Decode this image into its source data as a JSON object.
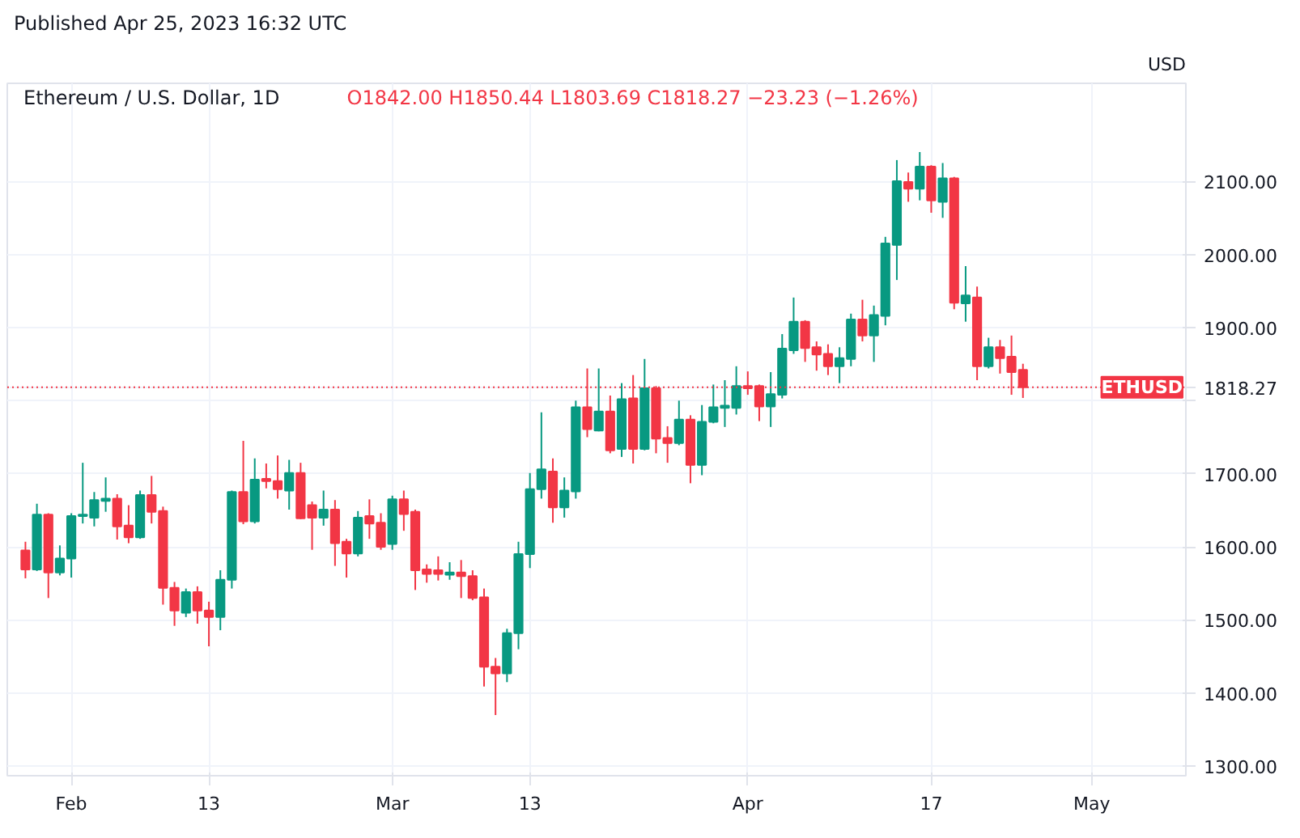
{
  "chart_data": {
    "type": "candlestick",
    "title": "Ethereum / U.S. Dollar, 1D",
    "subtitle": "O1842.00 H1850.44 L1803.69 C1818.27 −23.23 (−1.26%)",
    "ylabel": "USD",
    "annotations": [
      "Published Apr 25, 2023 16:32 UTC"
    ],
    "x": [
      "2023-01-28",
      "2023-01-29",
      "2023-01-30",
      "2023-01-31",
      "2023-02-01",
      "2023-02-02",
      "2023-02-03",
      "2023-02-04",
      "2023-02-05",
      "2023-02-06",
      "2023-02-07",
      "2023-02-08",
      "2023-02-09",
      "2023-02-10",
      "2023-02-11",
      "2023-02-12",
      "2023-02-13",
      "2023-02-14",
      "2023-02-15",
      "2023-02-16",
      "2023-02-17",
      "2023-02-18",
      "2023-02-19",
      "2023-02-20",
      "2023-02-21",
      "2023-02-22",
      "2023-02-23",
      "2023-02-24",
      "2023-02-25",
      "2023-02-26",
      "2023-02-27",
      "2023-02-28",
      "2023-03-01",
      "2023-03-02",
      "2023-03-03",
      "2023-03-04",
      "2023-03-05",
      "2023-03-06",
      "2023-03-07",
      "2023-03-08",
      "2023-03-09",
      "2023-03-10",
      "2023-03-11",
      "2023-03-12",
      "2023-03-13",
      "2023-03-14",
      "2023-03-15",
      "2023-03-16",
      "2023-03-17",
      "2023-03-18",
      "2023-03-19",
      "2023-03-20",
      "2023-03-21",
      "2023-03-22",
      "2023-03-23",
      "2023-03-24",
      "2023-03-25",
      "2023-03-26",
      "2023-03-27",
      "2023-03-28",
      "2023-03-29",
      "2023-03-30",
      "2023-03-31",
      "2023-04-01",
      "2023-04-02",
      "2023-04-03",
      "2023-04-04",
      "2023-04-05",
      "2023-04-06",
      "2023-04-07",
      "2023-04-08",
      "2023-04-09",
      "2023-04-10",
      "2023-04-11",
      "2023-04-12",
      "2023-04-13",
      "2023-04-14",
      "2023-04-15",
      "2023-04-16",
      "2023-04-17",
      "2023-04-18",
      "2023-04-19",
      "2023-04-20",
      "2023-04-21",
      "2023-04-22",
      "2023-04-23",
      "2023-04-24",
      "2023-04-25"
    ],
    "ohlc": [
      [
        1595,
        1607,
        1557,
        1569
      ],
      [
        1569,
        1659,
        1567,
        1644
      ],
      [
        1644,
        1646,
        1530,
        1565
      ],
      [
        1565,
        1602,
        1561,
        1584
      ],
      [
        1584,
        1646,
        1558,
        1642
      ],
      [
        1642,
        1715,
        1632,
        1644
      ],
      [
        1640,
        1675,
        1628,
        1664
      ],
      [
        1663,
        1695,
        1648,
        1666
      ],
      [
        1666,
        1672,
        1610,
        1628
      ],
      [
        1629,
        1657,
        1605,
        1613
      ],
      [
        1613,
        1677,
        1611,
        1671
      ],
      [
        1671,
        1697,
        1632,
        1648
      ],
      [
        1649,
        1655,
        1521,
        1544
      ],
      [
        1544,
        1552,
        1492,
        1513
      ],
      [
        1510,
        1543,
        1504,
        1538
      ],
      [
        1538,
        1546,
        1495,
        1513
      ],
      [
        1513,
        1525,
        1464,
        1504
      ],
      [
        1504,
        1568,
        1486,
        1555
      ],
      [
        1555,
        1677,
        1543,
        1675
      ],
      [
        1675,
        1745,
        1631,
        1635
      ],
      [
        1635,
        1721,
        1632,
        1692
      ],
      [
        1693,
        1714,
        1680,
        1690
      ],
      [
        1690,
        1725,
        1666,
        1679
      ],
      [
        1677,
        1719,
        1651,
        1701
      ],
      [
        1701,
        1715,
        1638,
        1639
      ],
      [
        1657,
        1662,
        1596,
        1640
      ],
      [
        1640,
        1677,
        1629,
        1651
      ],
      [
        1651,
        1664,
        1574,
        1605
      ],
      [
        1607,
        1611,
        1558,
        1591
      ],
      [
        1591,
        1649,
        1587,
        1640
      ],
      [
        1642,
        1665,
        1611,
        1632
      ],
      [
        1633,
        1646,
        1596,
        1600
      ],
      [
        1604,
        1670,
        1596,
        1665
      ],
      [
        1665,
        1677,
        1622,
        1645
      ],
      [
        1648,
        1651,
        1541,
        1568
      ],
      [
        1569,
        1576,
        1551,
        1563
      ],
      [
        1568,
        1587,
        1554,
        1563
      ],
      [
        1562,
        1579,
        1555,
        1565
      ],
      [
        1565,
        1582,
        1530,
        1560
      ],
      [
        1560,
        1568,
        1527,
        1530
      ],
      [
        1531,
        1543,
        1409,
        1436
      ],
      [
        1436,
        1448,
        1370,
        1427
      ],
      [
        1427,
        1488,
        1415,
        1482
      ],
      [
        1482,
        1607,
        1460,
        1590
      ],
      [
        1590,
        1701,
        1571,
        1679
      ],
      [
        1679,
        1784,
        1666,
        1706
      ],
      [
        1703,
        1721,
        1633,
        1654
      ],
      [
        1654,
        1695,
        1640,
        1677
      ],
      [
        1676,
        1800,
        1666,
        1791
      ],
      [
        1791,
        1844,
        1750,
        1761
      ],
      [
        1759,
        1844,
        1758,
        1785
      ],
      [
        1785,
        1807,
        1728,
        1732
      ],
      [
        1734,
        1824,
        1723,
        1802
      ],
      [
        1803,
        1835,
        1714,
        1734
      ],
      [
        1734,
        1857,
        1732,
        1817
      ],
      [
        1817,
        1820,
        1728,
        1748
      ],
      [
        1749,
        1765,
        1715,
        1742
      ],
      [
        1742,
        1800,
        1739,
        1774
      ],
      [
        1774,
        1780,
        1687,
        1712
      ],
      [
        1712,
        1794,
        1698,
        1771
      ],
      [
        1771,
        1822,
        1769,
        1791
      ],
      [
        1790,
        1828,
        1764,
        1793
      ],
      [
        1790,
        1847,
        1781,
        1820
      ],
      [
        1820,
        1840,
        1808,
        1817
      ],
      [
        1820,
        1822,
        1772,
        1792
      ],
      [
        1792,
        1839,
        1764,
        1809
      ],
      [
        1808,
        1891,
        1803,
        1871
      ],
      [
        1869,
        1941,
        1864,
        1908
      ],
      [
        1908,
        1910,
        1853,
        1872
      ],
      [
        1873,
        1881,
        1841,
        1863
      ],
      [
        1864,
        1877,
        1835,
        1847
      ],
      [
        1847,
        1873,
        1824,
        1858
      ],
      [
        1857,
        1919,
        1847,
        1911
      ],
      [
        1911,
        1938,
        1881,
        1889
      ],
      [
        1889,
        1930,
        1853,
        1917
      ],
      [
        1916,
        2024,
        1903,
        2015
      ],
      [
        2013,
        2129,
        1965,
        2100
      ],
      [
        2099,
        2112,
        2072,
        2090
      ],
      [
        2090,
        2140,
        2074,
        2120
      ],
      [
        2120,
        2122,
        2057,
        2074
      ],
      [
        2072,
        2125,
        2050,
        2104
      ],
      [
        2104,
        2106,
        1925,
        1934
      ],
      [
        1933,
        1984,
        1908,
        1944
      ],
      [
        1941,
        1956,
        1828,
        1847
      ],
      [
        1847,
        1886,
        1844,
        1873
      ],
      [
        1873,
        1883,
        1837,
        1858
      ],
      [
        1860,
        1889,
        1808,
        1839
      ],
      [
        1842.0,
        1850.44,
        1803.69,
        1818.27
      ]
    ],
    "colors": [
      "#f23645",
      "#089981",
      "#f23645",
      "#089981",
      "#089981",
      "#089981",
      "#089981",
      "#089981",
      "#f23645",
      "#f23645",
      "#089981",
      "#f23645",
      "#f23645",
      "#f23645",
      "#089981",
      "#f23645",
      "#f23645",
      "#089981",
      "#089981",
      "#f23645",
      "#089981",
      "#f23645",
      "#f23645",
      "#089981",
      "#f23645",
      "#f23645",
      "#089981",
      "#f23645",
      "#f23645",
      "#089981",
      "#f23645",
      "#f23645",
      "#089981",
      "#f23645",
      "#f23645",
      "#f23645",
      "#f23645",
      "#089981",
      "#f23645",
      "#f23645",
      "#f23645",
      "#f23645",
      "#089981",
      "#089981",
      "#089981",
      "#089981",
      "#f23645",
      "#089981",
      "#089981",
      "#f23645",
      "#089981",
      "#f23645",
      "#089981",
      "#f23645",
      "#089981",
      "#f23645",
      "#f23645",
      "#089981",
      "#f23645",
      "#089981",
      "#089981",
      "#089981",
      "#089981",
      "#f23645",
      "#f23645",
      "#089981",
      "#089981",
      "#089981",
      "#f23645",
      "#f23645",
      "#f23645",
      "#089981",
      "#089981",
      "#f23645",
      "#089981",
      "#089981",
      "#089981",
      "#f23645",
      "#089981",
      "#f23645",
      "#089981",
      "#f23645",
      "#089981",
      "#f23645",
      "#089981",
      "#f23645",
      "#f23645",
      "#f23645"
    ],
    "xlim": [
      "2023-01-26T10:00",
      "2023-05-09T05:00"
    ],
    "xticks": [
      {
        "value": "2023-02-01",
        "label": "Feb"
      },
      {
        "value": "2023-02-13",
        "label": "13"
      },
      {
        "value": "2023-03-01",
        "label": "Mar"
      },
      {
        "value": "2023-03-13",
        "label": "13"
      },
      {
        "value": "2023-04-01",
        "label": "Apr"
      },
      {
        "value": "2023-04-17",
        "label": "17"
      },
      {
        "value": "2023-05-01",
        "label": "May"
      }
    ],
    "ylim": [
      1287,
      2234
    ],
    "yticks": [
      {
        "value": 1300,
        "label": "1300.00"
      },
      {
        "value": 1400,
        "label": "1400.00"
      },
      {
        "value": 1500,
        "label": "1500.00"
      },
      {
        "value": 1600,
        "label": "1600.00"
      },
      {
        "value": 1700,
        "label": "1700.00"
      },
      {
        "value": 1800,
        "label": null
      },
      {
        "value": 1818.27,
        "label": "1818.27"
      },
      {
        "value": 1900,
        "label": "1900.00"
      },
      {
        "value": 2000,
        "label": "2000.00"
      },
      {
        "value": 2100,
        "label": "2100.00"
      }
    ],
    "ref_lines": [
      {
        "axis": "y",
        "value": 1818.27,
        "label": "ETHUSD",
        "color": "#f23645",
        "line_style": "dotted"
      }
    ],
    "grid": true
  }
}
